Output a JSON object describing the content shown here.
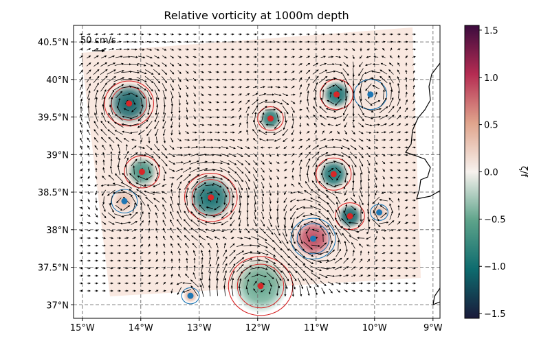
{
  "chart_data": {
    "type": "heatmap",
    "title": "Relative vorticity at 1000m depth",
    "xlabel": "",
    "ylabel": "",
    "xlim": [
      -15.15,
      -8.88
    ],
    "ylim": [
      36.82,
      40.72
    ],
    "grid": true,
    "x_ticks": [
      {
        "value": -15,
        "label": "15°W"
      },
      {
        "value": -14,
        "label": "14°W"
      },
      {
        "value": -13,
        "label": "13°W"
      },
      {
        "value": -12,
        "label": "12°W"
      },
      {
        "value": -11,
        "label": "11°W"
      },
      {
        "value": -10,
        "label": "10°W"
      },
      {
        "value": -9,
        "label": "9°W"
      }
    ],
    "y_ticks": [
      {
        "value": 37.0,
        "label": "37°N"
      },
      {
        "value": 37.5,
        "label": "37.5°N"
      },
      {
        "value": 38.0,
        "label": "38°N"
      },
      {
        "value": 38.5,
        "label": "38.5°N"
      },
      {
        "value": 39.0,
        "label": "39°N"
      },
      {
        "value": 39.5,
        "label": "39.5°N"
      },
      {
        "value": 40.0,
        "label": "40°N"
      },
      {
        "value": 40.5,
        "label": "40.5°N"
      }
    ],
    "colorbar": {
      "label": "ζ/f",
      "range": [
        -1.55,
        1.55
      ],
      "ticks": [
        {
          "value": 1.5,
          "label": "1.5"
        },
        {
          "value": 1.0,
          "label": "1.0"
        },
        {
          "value": 0.5,
          "label": "0.5"
        },
        {
          "value": 0.0,
          "label": "0.0"
        },
        {
          "value": -0.5,
          "label": "−0.5"
        },
        {
          "value": -1.0,
          "label": "−1.0"
        },
        {
          "value": -1.5,
          "label": "−1.5"
        }
      ],
      "colors": [
        "#1a1a3a",
        "#0d6b6e",
        "#5da38a",
        "#f7f2ee",
        "#e0a48c",
        "#b52c52",
        "#3b0b3e"
      ]
    },
    "quiver_key": {
      "label": "50 cm/s"
    },
    "eddies": [
      {
        "lon": -14.2,
        "lat": 39.68,
        "type": "cyclonic",
        "zeta": -1.1,
        "radius_deg": 0.42,
        "contour_color": "#d62728",
        "center_color": "#d62728"
      },
      {
        "lon": -11.78,
        "lat": 39.48,
        "type": "cyclonic",
        "zeta": -0.9,
        "radius_deg": 0.22,
        "contour_color": "#d62728",
        "center_color": "#d62728"
      },
      {
        "lon": -10.65,
        "lat": 39.8,
        "type": "cyclonic",
        "zeta": -1.0,
        "radius_deg": 0.28,
        "contour_color": "#d62728",
        "center_color": "#d62728"
      },
      {
        "lon": -10.07,
        "lat": 39.8,
        "type": "anticyclonic",
        "zeta": 0.1,
        "radius_deg": 0.28,
        "contour_color": "#1f77b4",
        "center_color": "#1f77b4"
      },
      {
        "lon": -13.98,
        "lat": 38.77,
        "type": "cyclonic",
        "zeta": -0.7,
        "radius_deg": 0.3,
        "contour_color": "#d62728",
        "center_color": "#d62728"
      },
      {
        "lon": -12.8,
        "lat": 38.43,
        "type": "cyclonic",
        "zeta": -1.0,
        "radius_deg": 0.45,
        "contour_color": "#d62728",
        "center_color": "#d62728"
      },
      {
        "lon": -10.7,
        "lat": 38.74,
        "type": "cyclonic",
        "zeta": -1.0,
        "radius_deg": 0.3,
        "contour_color": "#d62728",
        "center_color": "#d62728"
      },
      {
        "lon": -10.42,
        "lat": 38.18,
        "type": "cyclonic",
        "zeta": -1.1,
        "radius_deg": 0.25,
        "contour_color": "#d62728",
        "center_color": "#d62728"
      },
      {
        "lon": -14.28,
        "lat": 38.38,
        "type": "anticyclonic",
        "zeta": 0.3,
        "radius_deg": 0.22,
        "contour_color": "#1f77b4",
        "center_color": "#1f77b4"
      },
      {
        "lon": -9.92,
        "lat": 38.23,
        "type": "anticyclonic",
        "zeta": 0.3,
        "radius_deg": 0.15,
        "contour_color": "#1f77b4",
        "center_color": "#1f77b4"
      },
      {
        "lon": -11.05,
        "lat": 37.88,
        "type": "anticyclonic",
        "zeta": 0.9,
        "radius_deg": 0.38,
        "contour_color": "#1f77b4",
        "center_color": "#1f77b4"
      },
      {
        "lon": -11.95,
        "lat": 37.25,
        "type": "cyclonic",
        "zeta": -0.5,
        "radius_deg": 0.55,
        "contour_color": "#d62728",
        "center_color": "#d62728"
      },
      {
        "lon": -13.15,
        "lat": 37.12,
        "type": "anticyclonic",
        "zeta": 0.4,
        "radius_deg": 0.15,
        "contour_color": "#1f77b4",
        "center_color": "#1f77b4"
      }
    ]
  }
}
